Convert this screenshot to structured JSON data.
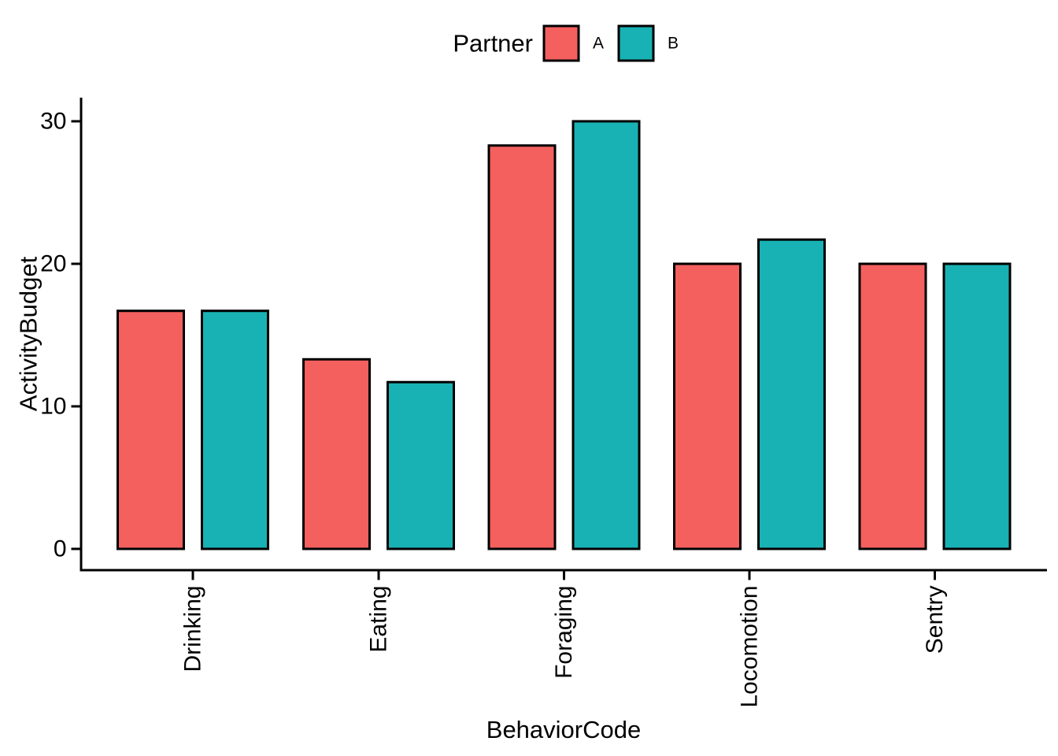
{
  "chart_data": {
    "type": "bar",
    "title": "",
    "categories": [
      "Drinking",
      "Eating",
      "Foraging",
      "Locomotion",
      "Sentry"
    ],
    "series": [
      {
        "name": "A",
        "color": "#F3605E",
        "values": [
          16.7,
          13.3,
          28.3,
          20,
          20
        ]
      },
      {
        "name": "B",
        "color": "#18B2B4",
        "values": [
          16.7,
          11.7,
          30,
          21.7,
          20
        ]
      }
    ],
    "xlabel": "BehaviorCode",
    "ylabel": "ActivityBudget",
    "ylim": [
      0,
      30
    ],
    "yticks": [
      0,
      10,
      20,
      30
    ],
    "legend_title": "Partner",
    "legend_position": "top",
    "legend_orientation": "horizontal",
    "grid": false,
    "bar_border_color": "#000000",
    "axis_color": "#000000",
    "text_color": "#000000",
    "background": "#FFFFFF",
    "x_tick_label_rotation_degrees": 90
  }
}
